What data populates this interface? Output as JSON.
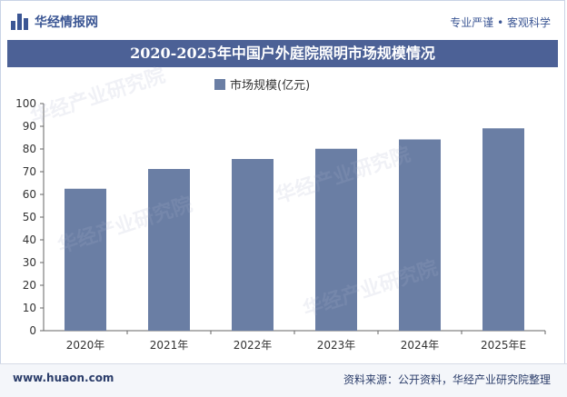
{
  "header": {
    "brand": "华经情报网",
    "tagline": "专业严谨 • 客观科学"
  },
  "title": "2020-2025年中国户外庭院照明市场规模情况",
  "legend_label": "市场规模(亿元)",
  "footer": {
    "url": "www.huaon.com",
    "source": "资料来源：公开资料，华经产业研究院整理"
  },
  "colors": {
    "bar": "#6a7ea4",
    "title_bar": "#4c6196",
    "brand": "#3b5694"
  },
  "chart_data": {
    "type": "bar",
    "categories": [
      "2020年",
      "2021年",
      "2022年",
      "2023年",
      "2024年",
      "2025年E"
    ],
    "series": [
      {
        "name": "市场规模(亿元)",
        "values": [
          62.5,
          71.2,
          75.6,
          80.1,
          84.2,
          89.1
        ]
      }
    ],
    "ylim": [
      0,
      100
    ],
    "yticks": [
      0,
      10,
      20,
      30,
      40,
      50,
      60,
      70,
      80,
      90,
      100
    ],
    "grid": false,
    "legend": "top-center"
  }
}
